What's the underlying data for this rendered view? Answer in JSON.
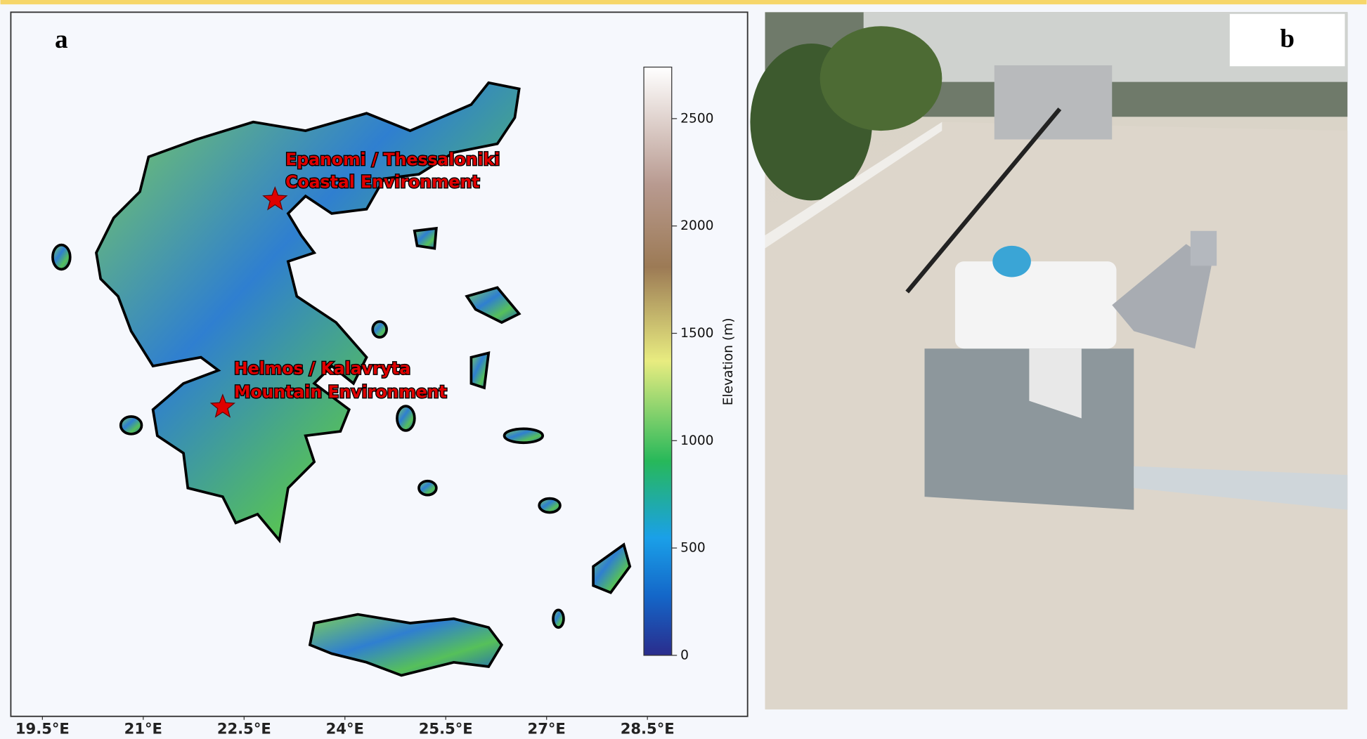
{
  "panel_a": {
    "label": "a",
    "annotations": [
      "Epanomi / Thessaloniki",
      "Coastal Environment",
      "Helmos / Kalavryta",
      "Mountain Environment"
    ],
    "colorbar": {
      "label": "Elevation (m)",
      "lim": [
        0,
        2740
      ],
      "ticks": [
        0,
        500,
        1000,
        1500,
        2000,
        2500
      ]
    },
    "xlim": [
      19.03,
      29.99
    ],
    "xticks": [
      {
        "value": 19.5,
        "label": "19.5°E"
      },
      {
        "value": 21,
        "label": "21°E"
      },
      {
        "value": 22.5,
        "label": "22.5°E"
      },
      {
        "value": 24,
        "label": "24°E"
      },
      {
        "value": 25.5,
        "label": "25.5°E"
      },
      {
        "value": 27,
        "label": "27°E"
      },
      {
        "value": 28.5,
        "label": "28.5°E"
      }
    ]
  },
  "panel_b": {
    "label": "b"
  }
}
